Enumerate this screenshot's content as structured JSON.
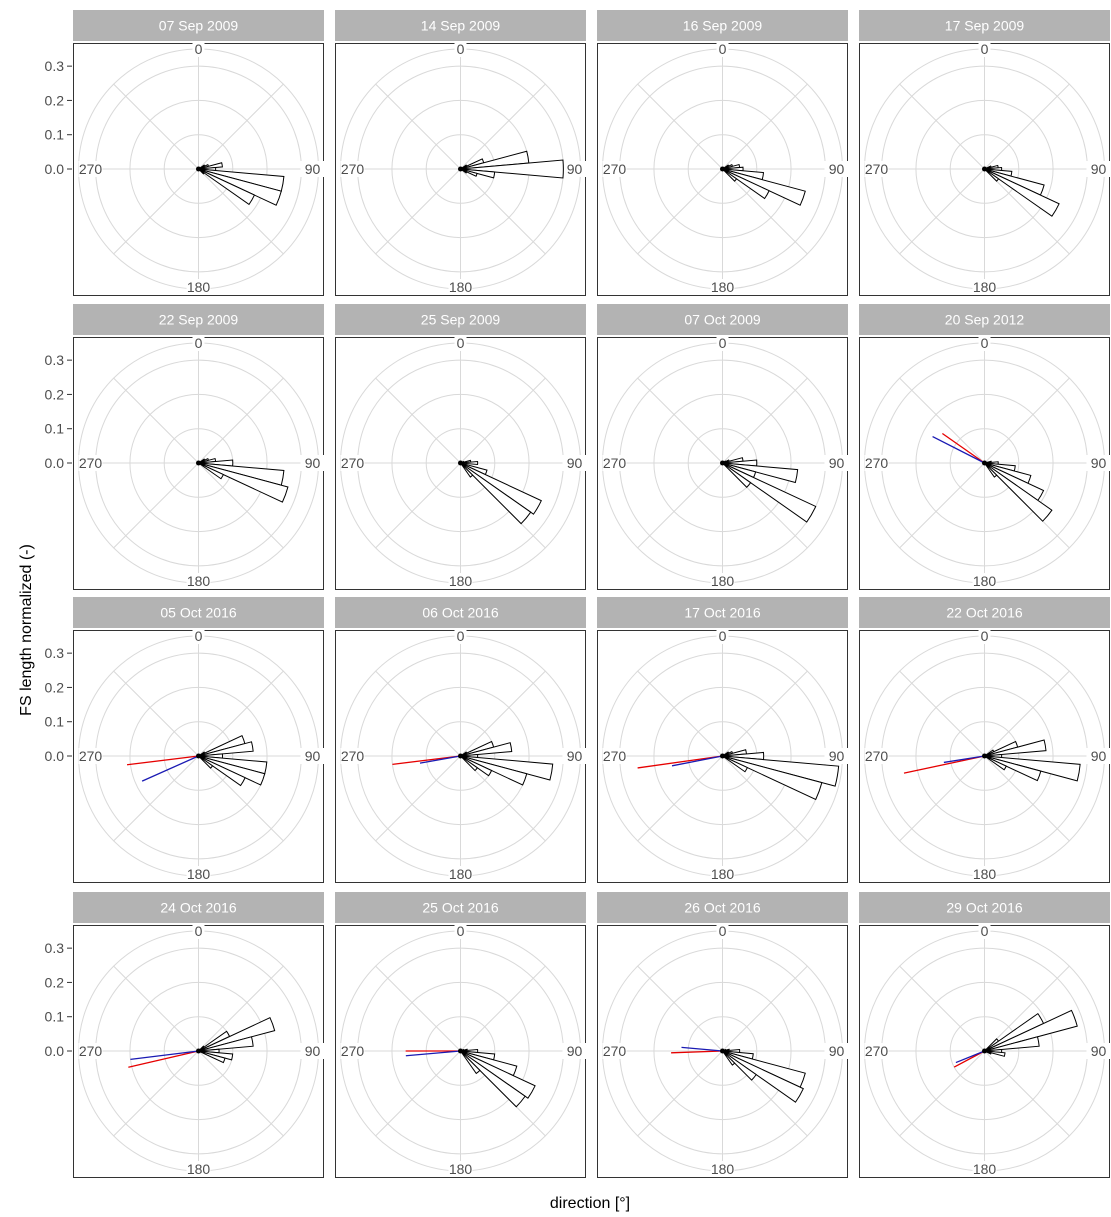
{
  "chart_data": {
    "type": "polar-rose",
    "xlabel": "direction [°]",
    "ylabel": "FS length normalized (-)",
    "radial_ticks": [
      0.0,
      0.1,
      0.2,
      0.3
    ],
    "radial_tick_labels": [
      "0.0",
      "0.1",
      "0.2",
      "0.3"
    ],
    "rlim": [
      0,
      0.35
    ],
    "direction_labels": [
      {
        "angle": 0,
        "label": "0"
      },
      {
        "angle": 90,
        "label": "90"
      },
      {
        "angle": 180,
        "label": "180"
      },
      {
        "angle": 270,
        "label": "270"
      }
    ],
    "bin_width_deg": 10,
    "grid": true,
    "colors": {
      "strip": "#b3b3b3",
      "grid": "#d9d9d9",
      "bars": "#000000",
      "line_red": "#e60000",
      "line_blue": "#1a1ab3"
    },
    "panels": [
      {
        "title": "07 Sep 2009",
        "bars": [
          [
            60,
            0.02
          ],
          [
            70,
            0.03
          ],
          [
            80,
            0.07
          ],
          [
            90,
            0.05
          ],
          [
            100,
            0.25
          ],
          [
            110,
            0.25
          ],
          [
            120,
            0.18
          ],
          [
            130,
            0.02
          ]
        ],
        "lines": []
      },
      {
        "title": "14 Sep 2009",
        "bars": [
          [
            60,
            0.02
          ],
          [
            70,
            0.07
          ],
          [
            80,
            0.2
          ],
          [
            90,
            0.3
          ],
          [
            100,
            0.1
          ],
          [
            110,
            0.05
          ],
          [
            120,
            0.02
          ]
        ],
        "lines": []
      },
      {
        "title": "16 Sep 2009",
        "bars": [
          [
            60,
            0.02
          ],
          [
            70,
            0.03
          ],
          [
            80,
            0.05
          ],
          [
            90,
            0.06
          ],
          [
            100,
            0.12
          ],
          [
            110,
            0.25
          ],
          [
            120,
            0.15
          ],
          [
            130,
            0.05
          ]
        ],
        "lines": []
      },
      {
        "title": "17 Sep 2009",
        "bars": [
          [
            70,
            0.02
          ],
          [
            80,
            0.04
          ],
          [
            90,
            0.05
          ],
          [
            100,
            0.08
          ],
          [
            110,
            0.18
          ],
          [
            120,
            0.24
          ],
          [
            130,
            0.05
          ]
        ],
        "lines": []
      },
      {
        "title": "22 Sep 2009",
        "bars": [
          [
            60,
            0.02
          ],
          [
            70,
            0.03
          ],
          [
            80,
            0.05
          ],
          [
            90,
            0.1
          ],
          [
            100,
            0.25
          ],
          [
            110,
            0.27
          ],
          [
            120,
            0.08
          ]
        ],
        "lines": []
      },
      {
        "title": "25 Sep 2009",
        "bars": [
          [
            70,
            0.01
          ],
          [
            80,
            0.03
          ],
          [
            90,
            0.05
          ],
          [
            110,
            0.08
          ],
          [
            120,
            0.26
          ],
          [
            130,
            0.25
          ],
          [
            140,
            0.05
          ]
        ],
        "lines": []
      },
      {
        "title": "07 Oct 2009",
        "bars": [
          [
            60,
            0.01
          ],
          [
            70,
            0.02
          ],
          [
            80,
            0.06
          ],
          [
            90,
            0.1
          ],
          [
            100,
            0.22
          ],
          [
            110,
            0.1
          ],
          [
            120,
            0.3
          ],
          [
            130,
            0.1
          ]
        ],
        "lines": []
      },
      {
        "title": "20 Sep 2012",
        "bars": [
          [
            80,
            0.02
          ],
          [
            90,
            0.04
          ],
          [
            100,
            0.09
          ],
          [
            110,
            0.14
          ],
          [
            120,
            0.19
          ],
          [
            130,
            0.24
          ],
          [
            140,
            0.05
          ]
        ],
        "lines": [
          {
            "color": "red",
            "angle": 305,
            "length": 0.15
          },
          {
            "color": "blue",
            "angle": 297,
            "length": 0.17
          }
        ]
      },
      {
        "title": "05 Oct 2016",
        "bars": [
          [
            60,
            0.02
          ],
          [
            70,
            0.14
          ],
          [
            80,
            0.16
          ],
          [
            90,
            0.07
          ],
          [
            100,
            0.2
          ],
          [
            110,
            0.2
          ],
          [
            120,
            0.15
          ],
          [
            130,
            0.05
          ]
        ],
        "lines": [
          {
            "color": "red",
            "angle": 263,
            "length": 0.21
          },
          {
            "color": "blue",
            "angle": 246,
            "length": 0.18
          }
        ]
      },
      {
        "title": "06 Oct 2016",
        "bars": [
          [
            60,
            0.02
          ],
          [
            70,
            0.1
          ],
          [
            80,
            0.15
          ],
          [
            90,
            0.05
          ],
          [
            100,
            0.27
          ],
          [
            110,
            0.2
          ],
          [
            120,
            0.1
          ],
          [
            130,
            0.06
          ]
        ],
        "lines": [
          {
            "color": "red",
            "angle": 263,
            "length": 0.2
          },
          {
            "color": "blue",
            "angle": 260,
            "length": 0.12
          }
        ]
      },
      {
        "title": "17 Oct 2016",
        "bars": [
          [
            60,
            0.02
          ],
          [
            70,
            0.03
          ],
          [
            80,
            0.07
          ],
          [
            90,
            0.12
          ],
          [
            100,
            0.34
          ],
          [
            110,
            0.3
          ],
          [
            120,
            0.08
          ]
        ],
        "lines": [
          {
            "color": "red",
            "angle": 262,
            "length": 0.25
          },
          {
            "color": "blue",
            "angle": 259,
            "length": 0.15
          }
        ]
      },
      {
        "title": "22 Oct 2016",
        "bars": [
          [
            60,
            0.03
          ],
          [
            70,
            0.1
          ],
          [
            80,
            0.18
          ],
          [
            90,
            0.05
          ],
          [
            100,
            0.28
          ],
          [
            110,
            0.17
          ],
          [
            120,
            0.07
          ]
        ],
        "lines": [
          {
            "color": "red",
            "angle": 258,
            "length": 0.24
          },
          {
            "color": "blue",
            "angle": 261,
            "length": 0.12
          }
        ]
      },
      {
        "title": "24 Oct 2016",
        "bars": [
          [
            50,
            0.02
          ],
          [
            60,
            0.1
          ],
          [
            70,
            0.23
          ],
          [
            80,
            0.16
          ],
          [
            90,
            0.06
          ],
          [
            100,
            0.1
          ],
          [
            110,
            0.08
          ]
        ],
        "lines": [
          {
            "color": "red",
            "angle": 257,
            "length": 0.21
          },
          {
            "color": "blue",
            "angle": 263,
            "length": 0.2
          }
        ]
      },
      {
        "title": "25 Oct 2016",
        "bars": [
          [
            70,
            0.01
          ],
          [
            80,
            0.02
          ],
          [
            90,
            0.05
          ],
          [
            100,
            0.1
          ],
          [
            110,
            0.17
          ],
          [
            120,
            0.24
          ],
          [
            130,
            0.23
          ],
          [
            140,
            0.08
          ]
        ],
        "lines": [
          {
            "color": "red",
            "angle": 270,
            "length": 0.16
          },
          {
            "color": "blue",
            "angle": 265,
            "length": 0.16
          }
        ]
      },
      {
        "title": "26 Oct 2016",
        "bars": [
          [
            70,
            0.01
          ],
          [
            80,
            0.02
          ],
          [
            90,
            0.05
          ],
          [
            100,
            0.09
          ],
          [
            110,
            0.25
          ],
          [
            120,
            0.26
          ],
          [
            130,
            0.12
          ],
          [
            140,
            0.05
          ]
        ],
        "lines": [
          {
            "color": "red",
            "angle": 268,
            "length": 0.15
          },
          {
            "color": "blue",
            "angle": 275,
            "length": 0.12
          }
        ]
      },
      {
        "title": "29 Oct 2016",
        "bars": [
          [
            50,
            0.05
          ],
          [
            60,
            0.19
          ],
          [
            70,
            0.28
          ],
          [
            80,
            0.16
          ],
          [
            90,
            0.05
          ],
          [
            100,
            0.06
          ],
          [
            110,
            0.02
          ]
        ],
        "lines": [
          {
            "color": "red",
            "angle": 242,
            "length": 0.1
          },
          {
            "color": "blue",
            "angle": 248,
            "length": 0.09
          }
        ]
      }
    ]
  }
}
